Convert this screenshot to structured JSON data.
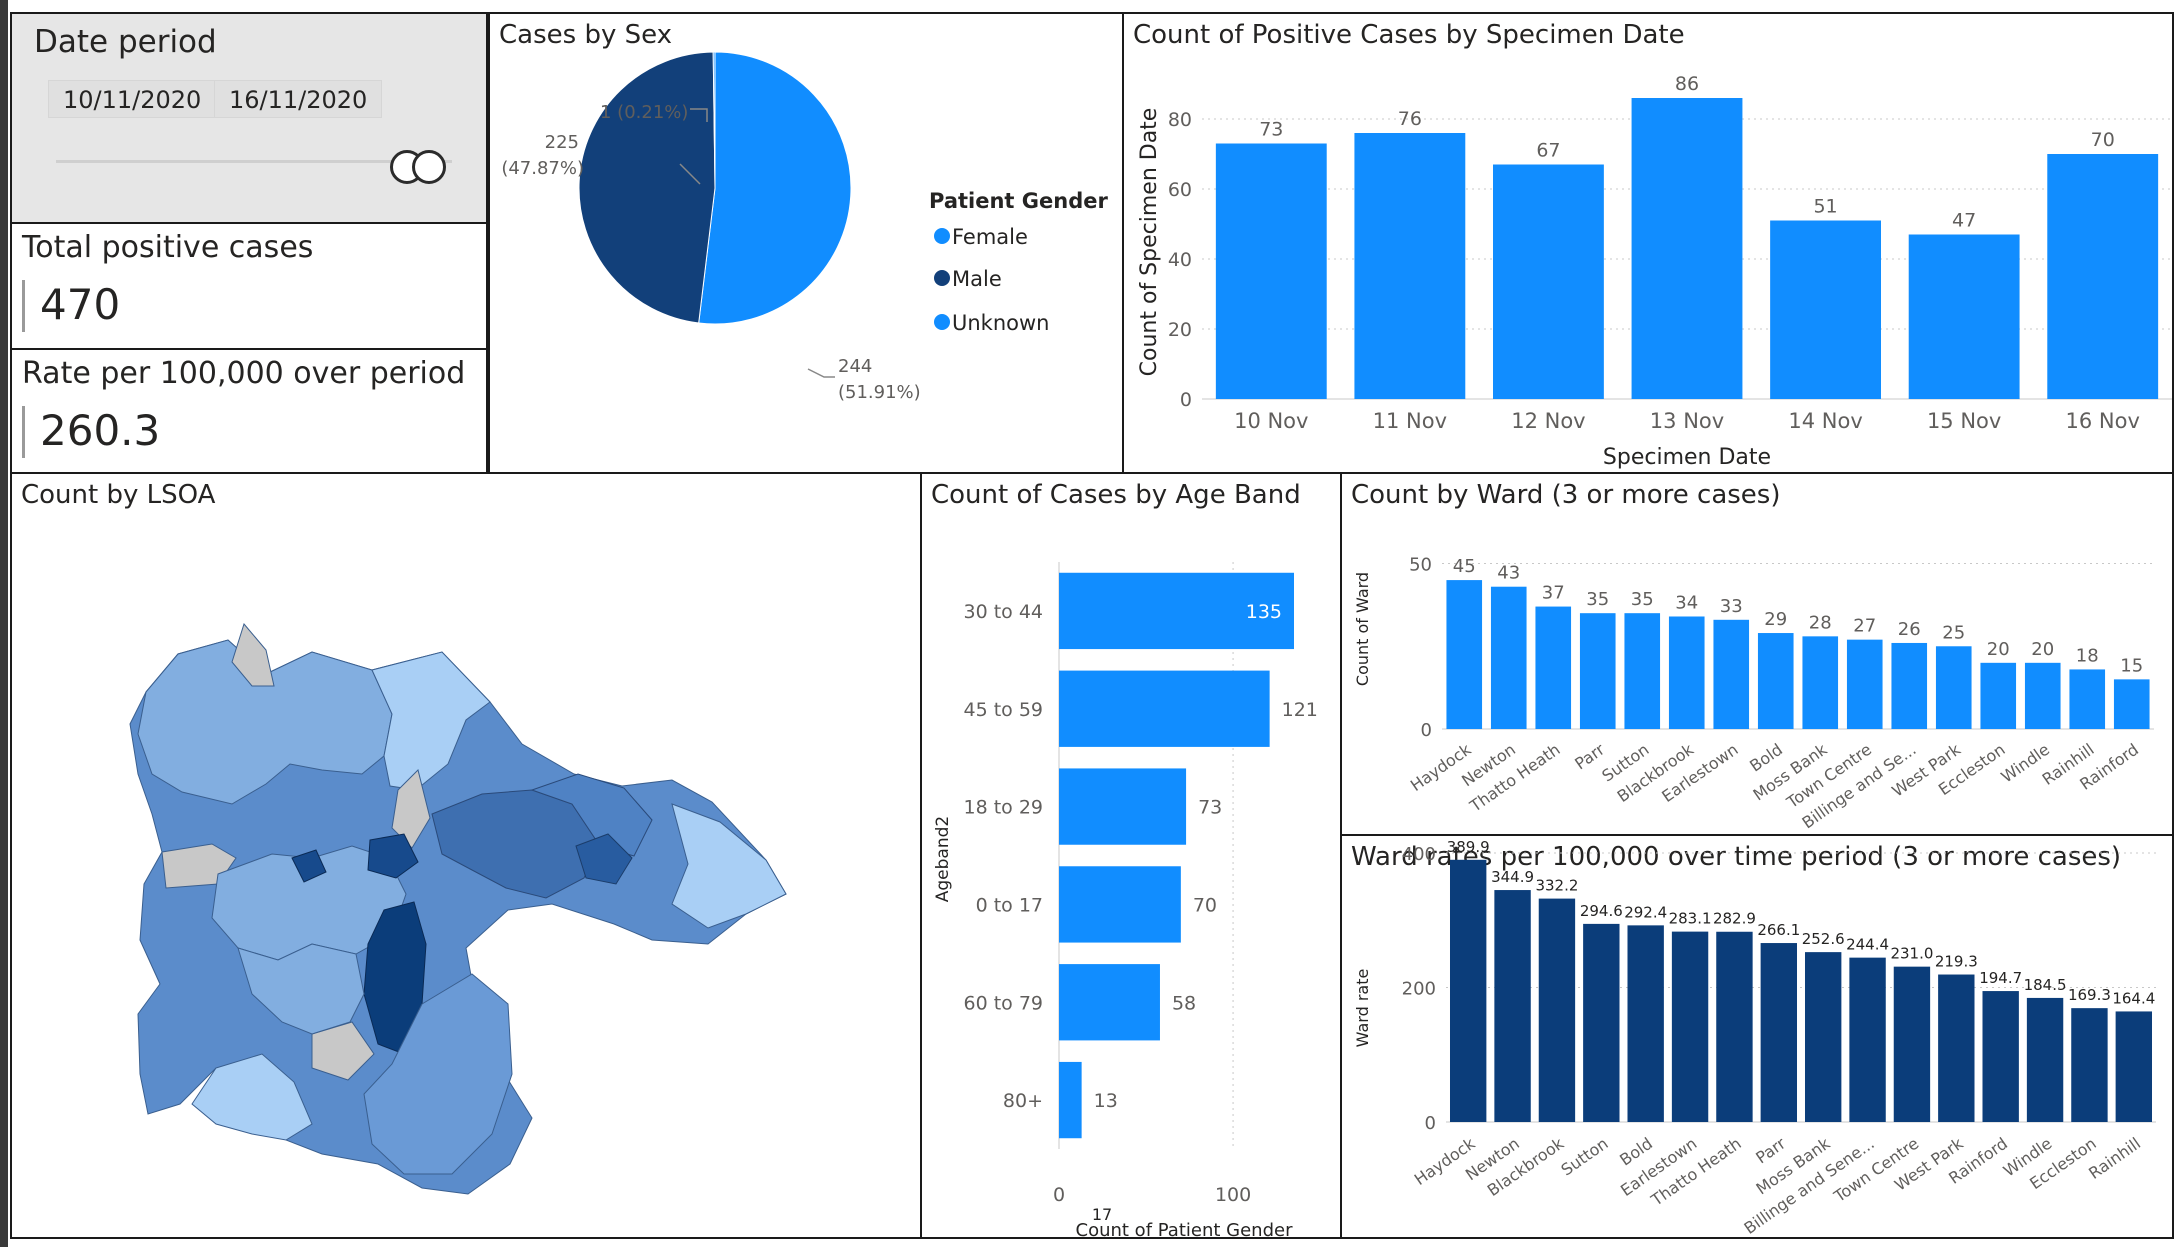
{
  "date_period": {
    "title": "Date period",
    "start": "10/11/2020",
    "end": "16/11/2020"
  },
  "total_cases": {
    "title": "Total positive cases",
    "value": "470"
  },
  "rate": {
    "title": "Rate per 100,000 over period",
    "value": "260.3"
  },
  "colors": {
    "primary": "#118dff",
    "dark": "#12239e",
    "navy": "#0b3d7a",
    "grid": "#cccccc"
  },
  "sex_chart": {
    "title": "Cases by Sex",
    "legend_title": "Patient Gender",
    "legend": [
      "Female",
      "Male",
      "Unknown"
    ],
    "label_unknown": "1 (0.21%)",
    "label_male_count": "225",
    "label_male_pct": "(47.87%)",
    "label_female_count": "244",
    "label_female_pct": "(51.91%)"
  },
  "date_chart": {
    "title": "Count of Positive Cases by Specimen Date",
    "xlabel": "Specimen Date",
    "ylabel": "Count of Specimen Date"
  },
  "lsoa": {
    "title": "Count by LSOA"
  },
  "age_chart": {
    "title": "Count of Cases by Age Band",
    "ylabel": "Ageband2",
    "xlabel": "Count of Patient Gender",
    "extra": "17"
  },
  "ward_chart": {
    "title": "Count by Ward (3 or more cases)",
    "ylabel": "Count of Ward"
  },
  "rate_chart": {
    "title": "Ward rates per 100,000 over time period (3 or more cases)",
    "ylabel": "Ward rate"
  },
  "chart_data": [
    {
      "type": "pie",
      "title": "Cases by Sex",
      "legend_title": "Patient Gender",
      "categories": [
        "Female",
        "Male",
        "Unknown"
      ],
      "values": [
        244,
        225,
        1
      ],
      "colors": [
        "#118dff",
        "#12407a",
        "#118dff"
      ],
      "legend_position": "right"
    },
    {
      "type": "bar",
      "title": "Count of Positive Cases by Specimen Date",
      "categories": [
        "10 Nov",
        "11 Nov",
        "12 Nov",
        "13 Nov",
        "14 Nov",
        "15 Nov",
        "16 Nov"
      ],
      "values": [
        73,
        76,
        67,
        86,
        51,
        47,
        70
      ],
      "xlabel": "Specimen Date",
      "ylabel": "Count of Specimen Date",
      "ylim": [
        0,
        90
      ],
      "yticks": [
        0,
        20,
        40,
        60,
        80
      ],
      "grid": true
    },
    {
      "type": "bar",
      "orientation": "horizontal",
      "title": "Count of Cases by Age Band",
      "categories": [
        "30 to 44",
        "45 to 59",
        "18 to 29",
        "0 to 17",
        "60 to 79",
        "80+"
      ],
      "values": [
        135,
        121,
        73,
        70,
        58,
        13
      ],
      "xlabel": "Count of Patient Gender",
      "ylabel": "Ageband2",
      "xlim": [
        0,
        135
      ],
      "xticks": [
        0,
        100
      ],
      "grid": true
    },
    {
      "type": "bar",
      "title": "Count by Ward (3 or more cases)",
      "categories": [
        "Haydock",
        "Newton",
        "Thatto Heath",
        "Parr",
        "Sutton",
        "Blackbrook",
        "Earlestown",
        "Bold",
        "Moss Bank",
        "Town Centre",
        "Billinge and Se...",
        "West Park",
        "Eccleston",
        "Windle",
        "Rainhill",
        "Rainford"
      ],
      "values": [
        45,
        43,
        37,
        35,
        35,
        34,
        33,
        29,
        28,
        27,
        26,
        25,
        20,
        20,
        18,
        15
      ],
      "ylabel": "Count of Ward",
      "ylim": [
        0,
        55
      ],
      "yticks": [
        0,
        50
      ],
      "grid": true
    },
    {
      "type": "bar",
      "title": "Ward rates per 100,000 over time period (3 or more cases)",
      "categories": [
        "Haydock",
        "Newton",
        "Blackbrook",
        "Sutton",
        "Bold",
        "Earlestown",
        "Thatto Heath",
        "Parr",
        "Moss Bank",
        "Billinge and Sene...",
        "Town Centre",
        "West Park",
        "Rainford",
        "Windle",
        "Eccleston",
        "Rainhill"
      ],
      "values": [
        389.9,
        344.9,
        332.2,
        294.6,
        292.4,
        283.1,
        282.9,
        266.1,
        252.6,
        244.4,
        231.0,
        219.3,
        194.7,
        184.5,
        169.3,
        164.4
      ],
      "value_labels": [
        "389.9",
        "344.9",
        "332.2",
        "294.6",
        "292.4",
        "283.1",
        "282.9",
        "266.1",
        "252.6",
        "244.4",
        "231.0",
        "219.3",
        "194.7",
        "184.5",
        "169.3",
        "164.4"
      ],
      "ylabel": "Ward rate",
      "ylim": [
        0,
        400
      ],
      "yticks": [
        0,
        200,
        400
      ],
      "grid": true
    }
  ]
}
